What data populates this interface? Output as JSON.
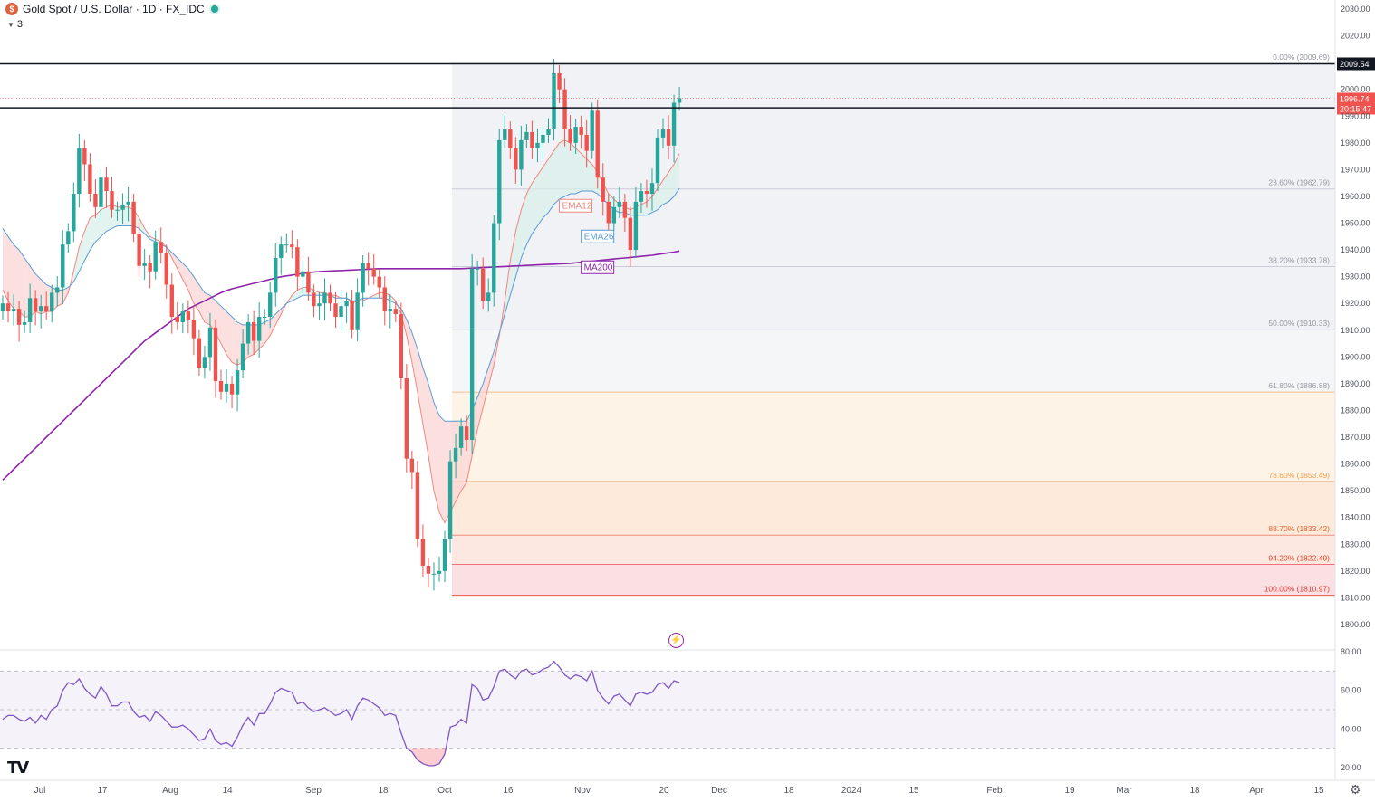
{
  "header": {
    "title": "Gold Spot / U.S. Dollar · 1D · FX_IDC",
    "indicator_count": "3"
  },
  "colors": {
    "up": "#26a69a",
    "down": "#ef5350",
    "ema12": "#f0877f",
    "ema26": "#5b9bd5",
    "ma200": "#8e24aa",
    "rsi": "#7e57c2",
    "axis_text": "#50535e",
    "grid": "#f0f3fa"
  },
  "icons": {
    "logo": "gold-coin-icon",
    "status": "market-open-dot-icon",
    "tv": "tradingview-logo-icon",
    "settings": "gear-icon",
    "alert": "lightning-icon"
  },
  "chart_data": [
    {
      "type": "candlestick",
      "title": "Gold Spot / U.S. Dollar · 1D · FX_IDC",
      "ylim": [
        1795,
        2033
      ],
      "y_ticks": [
        "2030.00",
        "2020.00",
        "2010.00",
        "2000.00",
        "1990.00",
        "1980.00",
        "1970.00",
        "1960.00",
        "1950.00",
        "1940.00",
        "1930.00",
        "1920.00",
        "1910.00",
        "1900.00",
        "1890.00",
        "1880.00",
        "1870.00",
        "1860.00",
        "1850.00",
        "1840.00",
        "1830.00",
        "1820.00",
        "1810.00",
        "1800.00"
      ],
      "x_ticks": [
        "Jul",
        "17",
        "Aug",
        "14",
        "Sep",
        "18",
        "Oct",
        "16",
        "Nov",
        "20",
        "Dec",
        "18",
        "2024",
        "15",
        "Feb",
        "19",
        "Mar",
        "18",
        "Apr",
        "15"
      ],
      "horizontal_lines": [
        {
          "value": 2009.54,
          "label": "2009.54"
        },
        {
          "value": 1993.1,
          "label": "1993.10"
        }
      ],
      "price_labels": {
        "last": "1996.74",
        "countdown": "20:15:47"
      },
      "fib_levels": [
        {
          "label": "0.00% (2009.69)",
          "value": 2009.69
        },
        {
          "label": "23.60% (1962.79)",
          "value": 1962.79
        },
        {
          "label": "38.20% (1933.78)",
          "value": 1933.78
        },
        {
          "label": "50.00% (1910.33)",
          "value": 1910.33
        },
        {
          "label": "61.80% (1886.88)",
          "value": 1886.88
        },
        {
          "label": "78.60% (1853.49)",
          "value": 1853.49
        },
        {
          "label": "88.70% (1833.42)",
          "value": 1833.42
        },
        {
          "label": "94.20% (1822.49)",
          "value": 1822.49
        },
        {
          "label": "100.00% (1810.97)",
          "value": 1810.97
        }
      ],
      "series_labels": {
        "ema12": "EMA12",
        "ema26": "EMA26",
        "ma200": "MA200"
      },
      "close": [
        1920,
        1917,
        1918,
        1912,
        1913,
        1922,
        1917,
        1919,
        1917,
        1924,
        1926,
        1942,
        1947,
        1961,
        1978,
        1972,
        1961,
        1956,
        1967,
        1962,
        1955,
        1955,
        1957,
        1958,
        1946,
        1934,
        1935,
        1932,
        1943,
        1939,
        1927,
        1915,
        1913,
        1917,
        1914,
        1907,
        1896,
        1900,
        1911,
        1891,
        1887,
        1890,
        1886,
        1895,
        1905,
        1913,
        1906,
        1915,
        1915,
        1924,
        1937,
        1942,
        1942,
        1941,
        1930,
        1932,
        1924,
        1919,
        1920,
        1924,
        1920,
        1915,
        1919,
        1921,
        1910,
        1924,
        1935,
        1933,
        1930,
        1926,
        1917,
        1918,
        1916,
        1892,
        1862,
        1857,
        1832,
        1822,
        1819,
        1819,
        1820,
        1832,
        1861,
        1866,
        1874,
        1869,
        1933,
        1933,
        1921,
        1924,
        1950,
        1981,
        1985,
        1978,
        1970,
        1981,
        1984,
        1978,
        1980,
        1983,
        1985,
        2006,
        2000,
        1985,
        1980,
        1986,
        1983,
        1977,
        1992,
        1967,
        1958,
        1950,
        1956,
        1958,
        1952,
        1940,
        1958,
        1962,
        1961,
        1965,
        1982,
        1985,
        1979,
        1995,
        1996.7
      ],
      "ema12": [
        1925,
        1921,
        1918,
        1917,
        1915,
        1915,
        1917,
        1916,
        1917,
        1917,
        1919,
        1920,
        1924,
        1932,
        1941,
        1947,
        1952,
        1953,
        1955,
        1956,
        1957,
        1956,
        1956,
        1956,
        1955,
        1952,
        1948,
        1945,
        1944,
        1943,
        1941,
        1937,
        1933,
        1929,
        1925,
        1920,
        1917,
        1913,
        1912,
        1909,
        1905,
        1901,
        1898,
        1897,
        1898,
        1900,
        1901,
        1903,
        1905,
        1908,
        1912,
        1916,
        1920,
        1923,
        1925,
        1926,
        1926,
        1925,
        1924,
        1924,
        1923,
        1923,
        1922,
        1922,
        1920,
        1921,
        1921,
        1922,
        1923,
        1924,
        1924,
        1923,
        1921,
        1916,
        1908,
        1898,
        1887,
        1875,
        1863,
        1850,
        1842,
        1838,
        1842,
        1846,
        1850,
        1853,
        1863,
        1873,
        1881,
        1889,
        1897,
        1908,
        1921,
        1936,
        1947,
        1955,
        1961,
        1965,
        1968,
        1971,
        1974,
        1977,
        1980,
        1981,
        1980,
        1978,
        1976,
        1974,
        1972,
        1969,
        1965,
        1961,
        1959,
        1957,
        1956,
        1955,
        1956,
        1957,
        1958,
        1960,
        1963,
        1966,
        1969,
        1972,
        1976
      ],
      "ema26": [
        1948,
        1945,
        1942,
        1940,
        1937,
        1934,
        1931,
        1929,
        1927,
        1926,
        1925,
        1925,
        1926,
        1928,
        1932,
        1936,
        1940,
        1943,
        1945,
        1947,
        1948,
        1949,
        1949,
        1949,
        1949,
        1948,
        1946,
        1944,
        1943,
        1942,
        1941,
        1939,
        1937,
        1935,
        1933,
        1930,
        1927,
        1924,
        1923,
        1921,
        1919,
        1917,
        1915,
        1913,
        1912,
        1912,
        1912,
        1912,
        1913,
        1914,
        1916,
        1918,
        1920,
        1921,
        1922,
        1923,
        1923,
        1923,
        1923,
        1923,
        1923,
        1922,
        1922,
        1922,
        1921,
        1921,
        1922,
        1922,
        1922,
        1922,
        1922,
        1921,
        1920,
        1918,
        1914,
        1909,
        1903,
        1896,
        1890,
        1883,
        1878,
        1876,
        1876,
        1876,
        1876,
        1876,
        1880,
        1885,
        1890,
        1896,
        1902,
        1909,
        1916,
        1923,
        1930,
        1937,
        1942,
        1946,
        1949,
        1952,
        1954,
        1957,
        1959,
        1960,
        1961,
        1961,
        1962,
        1962,
        1962,
        1961,
        1959,
        1957,
        1955,
        1954,
        1954,
        1953,
        1953,
        1953,
        1953,
        1954,
        1955,
        1957,
        1958,
        1960,
        1963
      ],
      "ma200": [
        1854,
        1856,
        1858,
        1860,
        1862,
        1864,
        1866,
        1868,
        1870,
        1872,
        1874,
        1876,
        1878,
        1880,
        1882,
        1884,
        1886,
        1888,
        1890,
        1892,
        1894,
        1896,
        1898,
        1900,
        1902,
        1904,
        1906,
        1907.5,
        1909,
        1910.5,
        1912,
        1913.5,
        1915,
        1916.5,
        1918,
        1919,
        1920,
        1921,
        1922,
        1923,
        1924,
        1924.8,
        1925.5,
        1926,
        1926.5,
        1927,
        1927.5,
        1928,
        1928.5,
        1929,
        1929.5,
        1930,
        1930.3,
        1930.6,
        1930.9,
        1931.2,
        1931.5,
        1931.7,
        1931.9,
        1932,
        1932.1,
        1932.2,
        1932.3,
        1932.4,
        1932.5,
        1932.6,
        1932.7,
        1932.8,
        1932.9,
        1933,
        1933,
        1933,
        1933,
        1933,
        1933,
        1933,
        1933,
        1933,
        1933,
        1933,
        1933,
        1933,
        1933,
        1933,
        1933,
        1933.1,
        1933.2,
        1933.3,
        1933.4,
        1933.5,
        1933.6,
        1933.7,
        1933.8,
        1933.9,
        1934,
        1934.1,
        1934.2,
        1934.3,
        1934.4,
        1934.5,
        1934.6,
        1934.7,
        1934.8,
        1934.9,
        1935,
        1935.2,
        1935.4,
        1935.6,
        1935.8,
        1936,
        1936.2,
        1936.4,
        1936.6,
        1936.8,
        1937,
        1937.2,
        1937.4,
        1937.6,
        1937.8,
        1938,
        1938.3,
        1938.6,
        1938.9,
        1939.2,
        1939.6
      ]
    },
    {
      "type": "line",
      "title": "",
      "ylim": [
        14,
        82
      ],
      "y_ticks": [
        "80.00",
        "60.00",
        "40.00",
        "20.00"
      ],
      "bands": [
        30,
        50,
        70
      ],
      "values": [
        45,
        47,
        47,
        45,
        44,
        46,
        43,
        47,
        45,
        50,
        52,
        60,
        64,
        63,
        66,
        61,
        58,
        56,
        62,
        58,
        52,
        52,
        54,
        54,
        49,
        46,
        47,
        44,
        49,
        47,
        44,
        41,
        41,
        42,
        40,
        37,
        34,
        35,
        40,
        34,
        32,
        33,
        31,
        36,
        42,
        46,
        42,
        48,
        48,
        53,
        59,
        61,
        60,
        59,
        53,
        54,
        51,
        49,
        50,
        51,
        49,
        47,
        48,
        50,
        45,
        52,
        56,
        55,
        53,
        51,
        47,
        48,
        47,
        38,
        30,
        28,
        24,
        22,
        21,
        21,
        22,
        27,
        41,
        42,
        45,
        43,
        63,
        61,
        55,
        56,
        62,
        70,
        71,
        68,
        66,
        70,
        71,
        68,
        69,
        71,
        72,
        75,
        72,
        68,
        66,
        68,
        67,
        65,
        70,
        60,
        56,
        53,
        57,
        58,
        55,
        52,
        58,
        59,
        58,
        59,
        63,
        64,
        61,
        65,
        64
      ]
    }
  ]
}
